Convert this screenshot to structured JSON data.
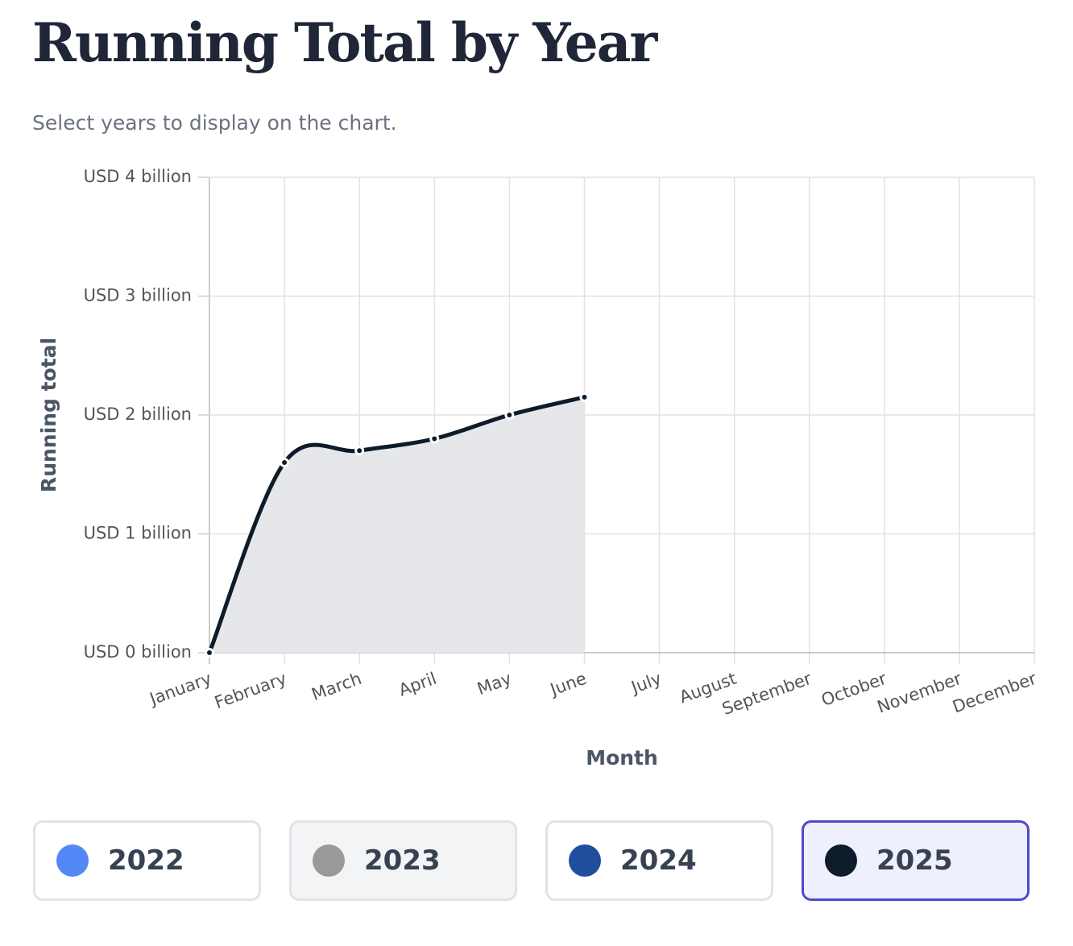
{
  "header": {
    "title": "Running Total by Year",
    "subtitle": "Select years to display on the chart."
  },
  "chart_data": {
    "type": "line",
    "xlabel": "Month",
    "ylabel": "Running total",
    "categories": [
      "January",
      "February",
      "March",
      "April",
      "May",
      "June",
      "July",
      "August",
      "September",
      "October",
      "November",
      "December"
    ],
    "ylim": [
      0,
      4
    ],
    "yticks": [
      {
        "value": 0,
        "label": "USD 0 billion"
      },
      {
        "value": 1,
        "label": "USD 1 billion"
      },
      {
        "value": 2,
        "label": "USD 2 billion"
      },
      {
        "value": 3,
        "label": "USD 3 billion"
      },
      {
        "value": 4,
        "label": "USD 4 billion"
      }
    ],
    "grid": true,
    "area": true,
    "series": [
      {
        "name": "2022",
        "color": "#5588f7",
        "selected": false
      },
      {
        "name": "2023",
        "color": "#999999",
        "selected": false
      },
      {
        "name": "2024",
        "color": "#1f4e9c",
        "selected": false
      },
      {
        "name": "2025",
        "color": "#0d1b2a",
        "selected": true,
        "values": [
          0,
          1.6,
          1.7,
          1.8,
          2.0,
          2.15,
          null,
          null,
          null,
          null,
          null,
          null
        ]
      }
    ]
  }
}
